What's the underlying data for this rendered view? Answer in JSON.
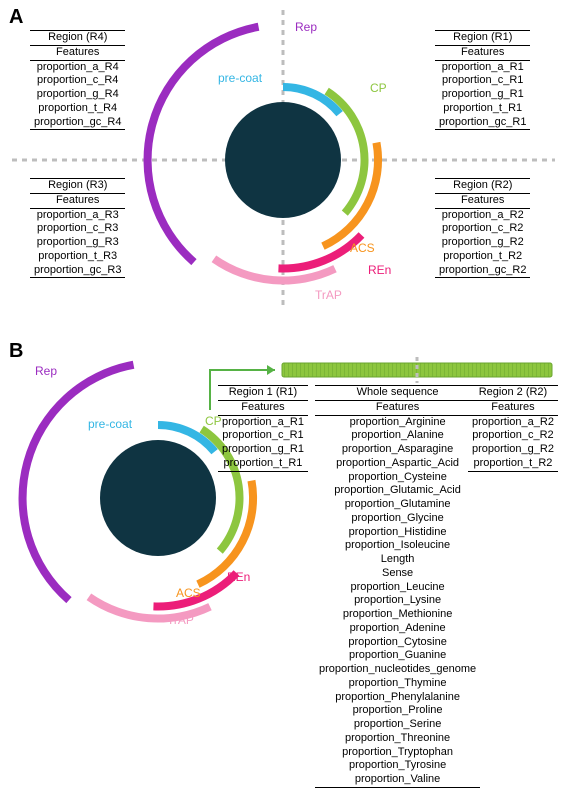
{
  "colors": {
    "core": "#0f3442",
    "rep": "#9b2cc0",
    "precoat": "#34b6e4",
    "cp": "#8dc63f",
    "acs": "#f7941e",
    "ren": "#ec1e79",
    "trap": "#f49ac1",
    "grid": "#bdbdbd",
    "arrow": "#56b245"
  },
  "arc_labels": {
    "rep": "Rep",
    "precoat": "pre-coat",
    "cp": "CP",
    "acs": "ACS",
    "ren": "REn",
    "trap": "TrAP"
  },
  "panelA": {
    "label": "A",
    "tables": {
      "r1": {
        "title": "Region (R1)",
        "rows": [
          "proportion_a_R1",
          "proportion_c_R1",
          "proportion_g_R1",
          "proportion_t_R1",
          "proportion_gc_R1"
        ]
      },
      "r2": {
        "title": "Region (R2)",
        "rows": [
          "proportion_a_R2",
          "proportion_c_R2",
          "proportion_g_R2",
          "proportion_t_R2",
          "proportion_gc_R2"
        ]
      },
      "r3": {
        "title": "Region (R3)",
        "rows": [
          "proportion_a_R3",
          "proportion_c_R3",
          "proportion_g_R3",
          "proportion_t_R3",
          "proportion_gc_R3"
        ]
      },
      "r4": {
        "title": "Region (R4)",
        "rows": [
          "proportion_a_R4",
          "proportion_c_R4",
          "proportion_g_R4",
          "proportion_t_R4",
          "proportion_gc_R4"
        ]
      }
    },
    "features_label": "Features"
  },
  "panelB": {
    "label": "B",
    "tables": {
      "r1": {
        "title": "Region 1 (R1)",
        "rows": [
          "proportion_a_R1",
          "proportion_c_R1",
          "proportion_g_R1",
          "proportion_t_R1"
        ]
      },
      "r2": {
        "title": "Region 2 (R2)",
        "rows": [
          "proportion_a_R2",
          "proportion_c_R2",
          "proportion_g_R2",
          "proportion_t_R2"
        ]
      },
      "whole": {
        "title": "Whole sequence",
        "rows": [
          "proportion_Arginine",
          "proportion_Alanine",
          "proportion_Asparagine",
          "proportion_Aspartic_Acid",
          "proportion_Cysteine",
          "proportion_Glutamic_Acid",
          "proportion_Glutamine",
          "proportion_Glycine",
          "proportion_Histidine",
          "proportion_Isoleucine",
          "Length",
          "Sense",
          "proportion_Leucine",
          "proportion_Lysine",
          "proportion_Methionine",
          "proportion_Adenine",
          "proportion_Cytosine",
          "proportion_Guanine",
          "proportion_nucleotides_genome",
          "proportion_Thymine",
          "proportion_Phenylalanine",
          "proportion_Proline",
          "proportion_Serine",
          "proportion_Threonine",
          "proportion_Tryptophan",
          "proportion_Tyrosine",
          "proportion_Valine"
        ]
      }
    },
    "features_label": "Features"
  }
}
